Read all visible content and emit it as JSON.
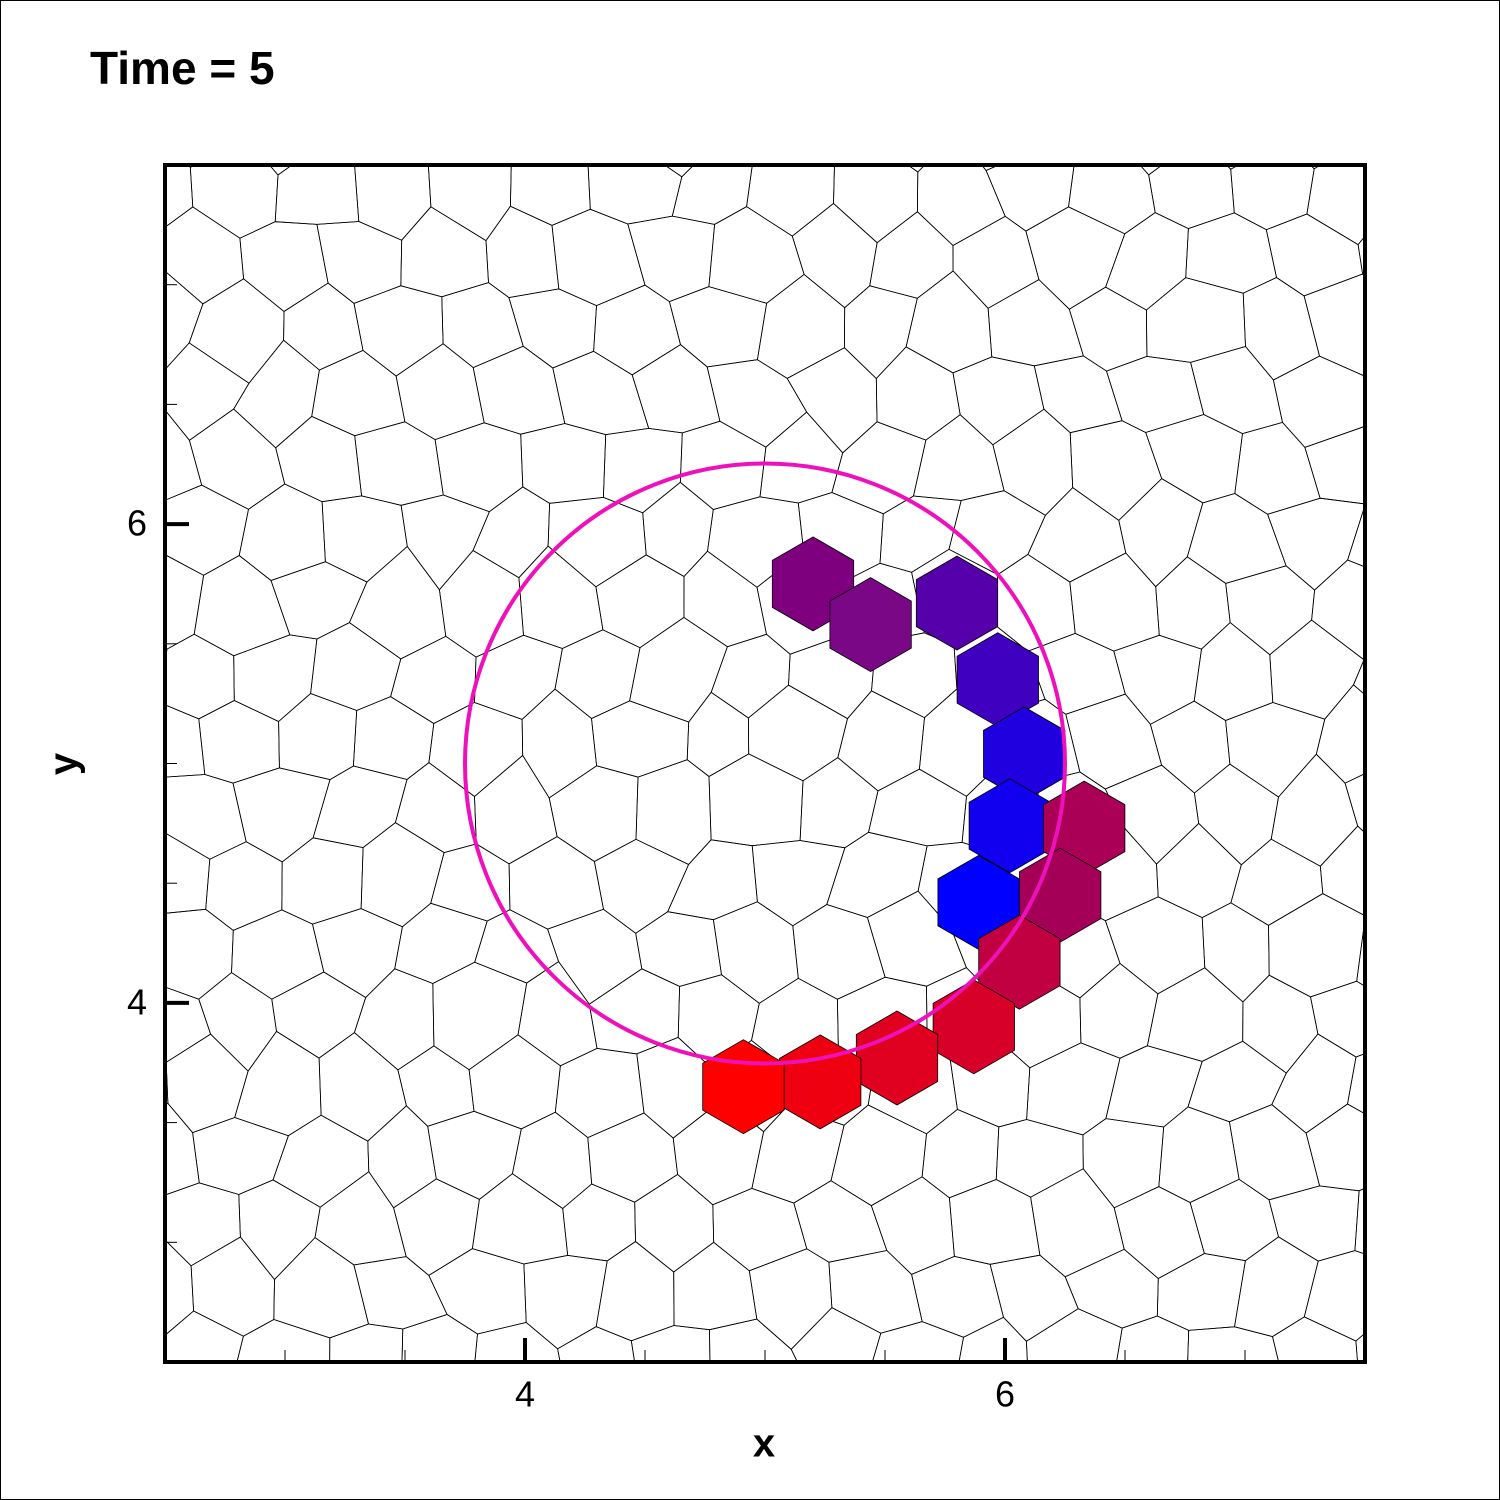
{
  "chart_data": {
    "type": "mesh",
    "title": "Time = 5",
    "x_label": "x",
    "y_label": "y",
    "xlim": [
      2.5,
      7.5
    ],
    "ylim": [
      2.5,
      7.5
    ],
    "xticks": [
      4,
      6
    ],
    "yticks": [
      4,
      6
    ],
    "xminorticks": [
      3,
      3.5,
      4.5,
      5,
      5.5,
      6.5,
      7
    ],
    "yminorticks": [
      3,
      3.5,
      4.5,
      5,
      5.5,
      6.5,
      7
    ],
    "circle": {
      "center": [
        5,
        5
      ],
      "radius": 1.25,
      "color": "#ee11bb"
    },
    "cells": [
      {
        "x": 5.2,
        "y": 5.75,
        "color": "#7f007f"
      },
      {
        "x": 5.44,
        "y": 5.58,
        "color": "#7a0886"
      },
      {
        "x": 5.8,
        "y": 5.67,
        "color": "#5500aa"
      },
      {
        "x": 5.97,
        "y": 5.35,
        "color": "#3f00c0"
      },
      {
        "x": 6.08,
        "y": 5.04,
        "color": "#2000df"
      },
      {
        "x": 6.02,
        "y": 4.74,
        "color": "#1000ef"
      },
      {
        "x": 5.89,
        "y": 4.42,
        "color": "#0000ff"
      },
      {
        "x": 6.33,
        "y": 4.73,
        "color": "#aa0055"
      },
      {
        "x": 6.23,
        "y": 4.45,
        "color": "#a50058"
      },
      {
        "x": 6.06,
        "y": 4.17,
        "color": "#c00040"
      },
      {
        "x": 5.87,
        "y": 3.9,
        "color": "#d60028"
      },
      {
        "x": 5.55,
        "y": 3.77,
        "color": "#e0001f"
      },
      {
        "x": 5.23,
        "y": 3.67,
        "color": "#ef0010"
      },
      {
        "x": 4.91,
        "y": 3.65,
        "color": "#ff0000"
      }
    ]
  }
}
